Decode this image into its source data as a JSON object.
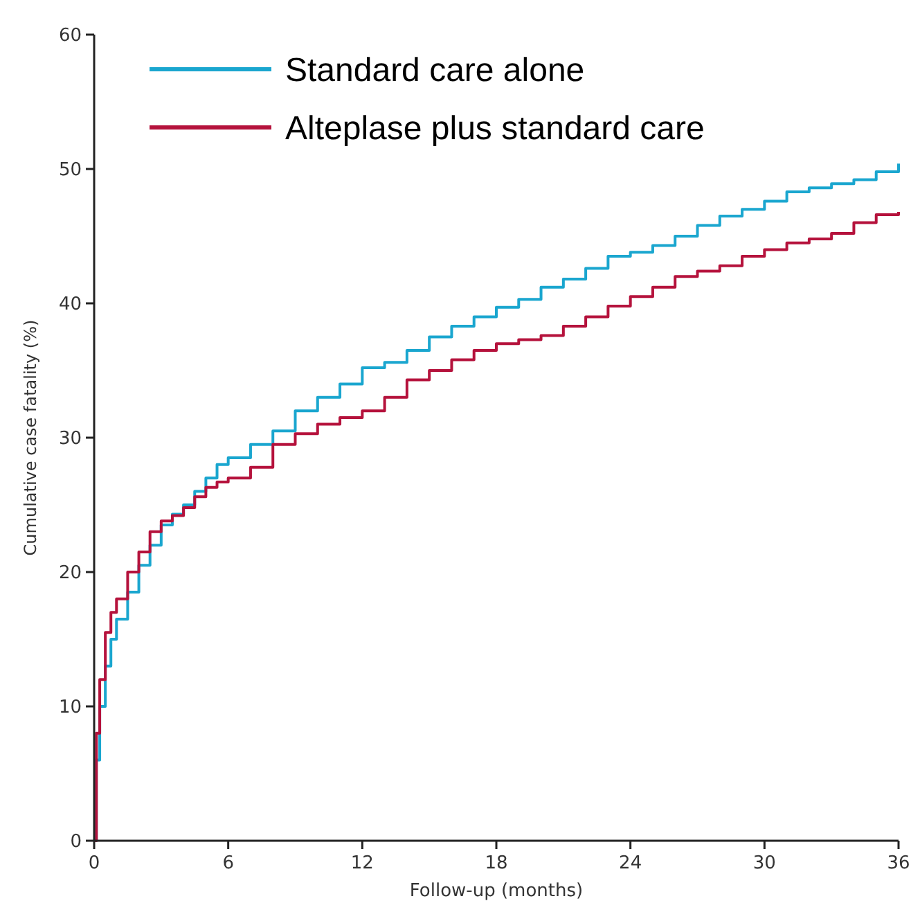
{
  "chart_data": {
    "type": "step",
    "xlabel": "Follow-up (months)",
    "ylabel": "Cumulative case fatality (%)",
    "xlim": [
      0,
      36
    ],
    "xticks": [
      0,
      6,
      12,
      18,
      24,
      30,
      36
    ],
    "ylim": [
      0,
      60
    ],
    "yticks": [
      0,
      10,
      20,
      30,
      40,
      50,
      60
    ],
    "grid": false,
    "legend": "top left",
    "marker": "none",
    "line_style": "solid",
    "x": [
      0,
      0.1,
      0.25,
      0.5,
      0.75,
      1,
      1.5,
      2,
      2.5,
      3,
      3.5,
      4,
      4.5,
      5,
      5.5,
      6,
      7,
      8,
      9,
      10,
      11,
      12,
      13,
      14,
      15,
      16,
      17,
      18,
      19,
      20,
      21,
      22,
      23,
      24,
      25,
      26,
      27,
      28,
      29,
      30,
      31,
      32,
      33,
      34,
      35,
      36
    ],
    "series": [
      {
        "name": "Standard care alone",
        "color": "#1aa6cf",
        "values": [
          0,
          6,
          10,
          13,
          15,
          16.5,
          18.5,
          20.5,
          22,
          23.5,
          24.3,
          25,
          26,
          27,
          28,
          28.5,
          29.5,
          30.5,
          32,
          33,
          34,
          35.2,
          35.6,
          36.5,
          37.5,
          38.3,
          39,
          39.7,
          40.3,
          41.2,
          41.8,
          42.6,
          43.5,
          43.8,
          44.3,
          45,
          45.8,
          46.5,
          47,
          47.6,
          48.3,
          48.6,
          48.9,
          49.2,
          49.8,
          50.4
        ]
      },
      {
        "name": "Alteplase plus standard care",
        "color": "#b5123c",
        "values": [
          0,
          8,
          12,
          15.5,
          17,
          18,
          20,
          21.5,
          23,
          23.8,
          24.2,
          24.8,
          25.6,
          26.3,
          26.7,
          27,
          27.8,
          29.5,
          30.3,
          31,
          31.5,
          32,
          33,
          34.3,
          35,
          35.8,
          36.5,
          37,
          37.3,
          37.6,
          38.3,
          39,
          39.8,
          40.5,
          41.2,
          42,
          42.4,
          42.8,
          43.5,
          44,
          44.5,
          44.8,
          45.2,
          46,
          46.6,
          46.8
        ]
      }
    ]
  }
}
